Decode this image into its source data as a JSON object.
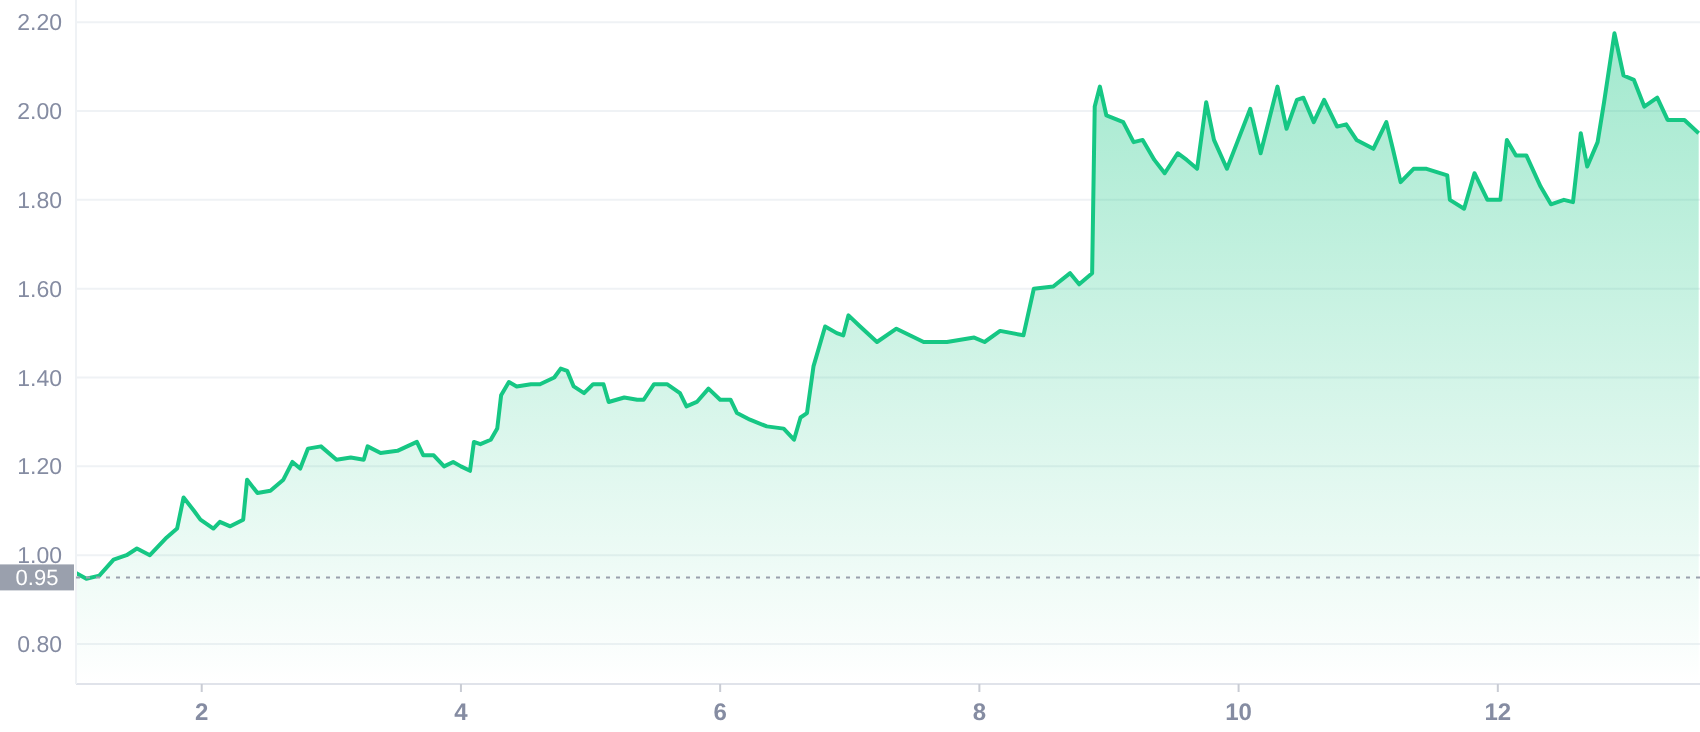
{
  "chart_data": {
    "type": "area",
    "xlim": [
      1.03,
      13.56
    ],
    "xticks": [
      2,
      4,
      6,
      8,
      10,
      12
    ],
    "ylim": [
      0.71,
      2.25
    ],
    "yticks": [
      {
        "value": 0.8,
        "label": "0.80"
      },
      {
        "value": 1,
        "label": "1.00"
      },
      {
        "value": 1.2,
        "label": "1.20"
      },
      {
        "value": 1.4,
        "label": "1.40"
      },
      {
        "value": 1.6,
        "label": "1.60"
      },
      {
        "value": 1.8,
        "label": "1.80"
      },
      {
        "value": 2,
        "label": "2.00"
      },
      {
        "value": 2.2,
        "label": "2.20"
      }
    ],
    "grid": "y",
    "marker": "none",
    "line_style": "solid",
    "ref_lines": [
      {
        "axis": "y",
        "value": 0.95,
        "label": "0.95",
        "color": "#9aa0ad",
        "line_style": "dotted"
      }
    ],
    "series": [
      {
        "color": "#16c784",
        "x": [
          1.03,
          1.11,
          1.21,
          1.32,
          1.42,
          1.5,
          1.6,
          1.73,
          1.81,
          1.86,
          1.94,
          1.99,
          2.09,
          2.14,
          2.22,
          2.32,
          2.35,
          2.43,
          2.53,
          2.63,
          2.7,
          2.76,
          2.82,
          2.92,
          3.04,
          3.15,
          3.25,
          3.28,
          3.38,
          3.51,
          3.66,
          3.71,
          3.79,
          3.87,
          3.94,
          4.0,
          4.07,
          4.1,
          4.15,
          4.23,
          4.28,
          4.31,
          4.37,
          4.43,
          4.54,
          4.61,
          4.72,
          4.77,
          4.82,
          4.87,
          4.95,
          5.02,
          5.1,
          5.14,
          5.26,
          5.36,
          5.41,
          5.49,
          5.59,
          5.69,
          5.74,
          5.82,
          5.91,
          6.0,
          6.08,
          6.13,
          6.23,
          6.36,
          6.49,
          6.57,
          6.62,
          6.67,
          6.72,
          6.81,
          6.9,
          6.95,
          6.99,
          7.08,
          7.21,
          7.36,
          7.57,
          7.75,
          7.96,
          8.04,
          8.16,
          8.34,
          8.42,
          8.57,
          8.7,
          8.77,
          8.87,
          8.89,
          8.93,
          8.98,
          9.11,
          9.19,
          9.26,
          9.35,
          9.43,
          9.53,
          9.6,
          9.68,
          9.75,
          9.81,
          9.91,
          9.99,
          10.09,
          10.17,
          10.3,
          10.37,
          10.45,
          10.5,
          10.58,
          10.66,
          10.76,
          10.83,
          10.91,
          11.04,
          11.14,
          11.19,
          11.25,
          11.35,
          11.45,
          11.61,
          11.63,
          11.74,
          11.82,
          11.92,
          12.02,
          12.07,
          12.14,
          12.22,
          12.33,
          12.41,
          12.51,
          12.58,
          12.64,
          12.69,
          12.77,
          12.82,
          12.9,
          12.97,
          13.05,
          13.13,
          13.23,
          13.31,
          13.44,
          13.55
        ],
        "values": [
          0.96,
          0.947,
          0.954,
          0.99,
          1.0,
          1.015,
          1.0,
          1.04,
          1.06,
          1.13,
          1.1,
          1.08,
          1.06,
          1.075,
          1.065,
          1.08,
          1.17,
          1.14,
          1.145,
          1.17,
          1.21,
          1.195,
          1.24,
          1.245,
          1.215,
          1.22,
          1.215,
          1.245,
          1.23,
          1.235,
          1.255,
          1.225,
          1.225,
          1.2,
          1.21,
          1.2,
          1.19,
          1.255,
          1.25,
          1.26,
          1.285,
          1.36,
          1.39,
          1.38,
          1.385,
          1.385,
          1.4,
          1.42,
          1.415,
          1.38,
          1.365,
          1.385,
          1.385,
          1.345,
          1.355,
          1.35,
          1.35,
          1.385,
          1.385,
          1.365,
          1.335,
          1.345,
          1.375,
          1.35,
          1.35,
          1.32,
          1.305,
          1.29,
          1.285,
          1.26,
          1.31,
          1.32,
          1.425,
          1.515,
          1.5,
          1.495,
          1.54,
          1.515,
          1.48,
          1.51,
          1.48,
          1.48,
          1.49,
          1.48,
          1.505,
          1.495,
          1.6,
          1.605,
          1.635,
          1.61,
          1.635,
          2.01,
          2.055,
          1.99,
          1.975,
          1.93,
          1.935,
          1.89,
          1.86,
          1.905,
          1.89,
          1.87,
          2.02,
          1.935,
          1.87,
          1.93,
          2.005,
          1.905,
          2.055,
          1.96,
          2.025,
          2.03,
          1.975,
          2.025,
          1.965,
          1.97,
          1.935,
          1.915,
          1.975,
          1.915,
          1.84,
          1.87,
          1.87,
          1.855,
          1.8,
          1.78,
          1.86,
          1.8,
          1.8,
          1.935,
          1.9,
          1.9,
          1.83,
          1.79,
          1.8,
          1.795,
          1.95,
          1.875,
          1.93,
          2.02,
          2.175,
          2.08,
          2.07,
          2.01,
          2.03,
          1.98,
          1.98,
          1.95
        ]
      }
    ]
  }
}
